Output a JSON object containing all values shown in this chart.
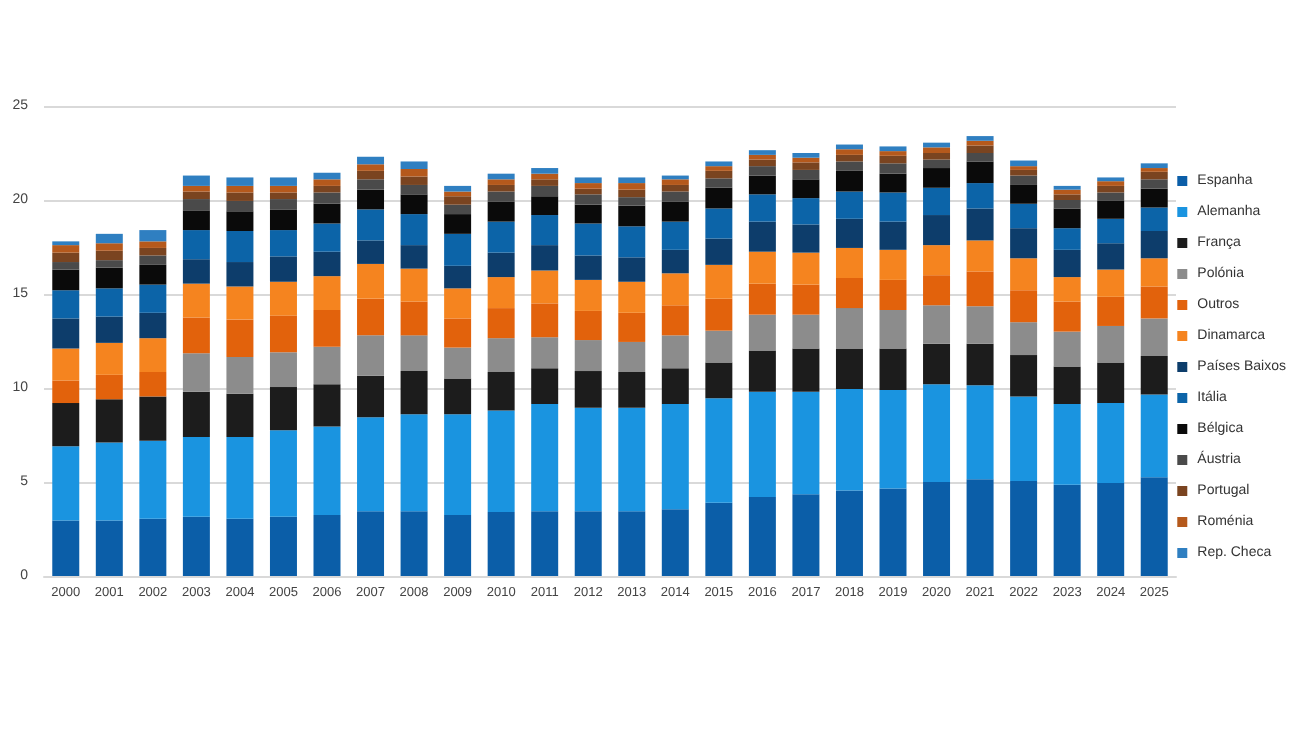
{
  "chart_data": {
    "type": "bar",
    "stacked": true,
    "categories": [
      "2000",
      "2001",
      "2002",
      "2003",
      "2004",
      "2005",
      "2006",
      "2007",
      "2008",
      "2009",
      "2010",
      "2011",
      "2012",
      "2013",
      "2014",
      "2015",
      "2016",
      "2017",
      "2018",
      "2019",
      "2020",
      "2021",
      "2022",
      "2023",
      "2024",
      "2025"
    ],
    "ylim": [
      0,
      25
    ],
    "yticks": [
      0,
      5,
      10,
      15,
      20,
      25
    ],
    "grid": "y",
    "legend": "right",
    "series": [
      {
        "name": "Espanha",
        "color": "#0b5ea8",
        "values": [
          2.95,
          2.95,
          3.05,
          3.15,
          3.05,
          3.15,
          3.25,
          3.45,
          3.45,
          3.25,
          3.4,
          3.45,
          3.45,
          3.45,
          3.55,
          3.9,
          4.2,
          4.35,
          4.55,
          4.65,
          5.0,
          5.15,
          5.05,
          4.85,
          4.95,
          5.25
        ]
      },
      {
        "name": "Alemanha",
        "color": "#1a94e0",
        "values": [
          3.95,
          4.15,
          4.15,
          4.25,
          4.35,
          4.6,
          4.7,
          5.0,
          5.15,
          5.35,
          5.4,
          5.7,
          5.5,
          5.5,
          5.6,
          5.55,
          5.6,
          5.45,
          5.4,
          5.25,
          5.2,
          5.0,
          4.5,
          4.3,
          4.25,
          4.4
        ]
      },
      {
        "name": "França",
        "color": "#1c1c1c",
        "values": [
          2.3,
          2.3,
          2.35,
          2.4,
          2.3,
          2.3,
          2.25,
          2.2,
          2.3,
          1.9,
          2.05,
          1.9,
          1.95,
          1.9,
          1.9,
          1.9,
          2.2,
          2.3,
          2.15,
          2.2,
          2.15,
          2.2,
          2.2,
          2.0,
          2.15,
          2.05
        ]
      },
      {
        "name": "Polónia",
        "color": "#8c8c8c",
        "values": [
          0,
          0,
          0,
          2.05,
          1.95,
          1.85,
          2.0,
          2.15,
          1.9,
          1.65,
          1.8,
          1.65,
          1.65,
          1.6,
          1.75,
          1.7,
          1.9,
          1.8,
          2.15,
          2.05,
          2.05,
          2.0,
          1.75,
          1.85,
          1.95,
          2.0
        ]
      },
      {
        "name": "Outros",
        "color": "#e2620c",
        "values": [
          1.2,
          1.3,
          1.3,
          1.9,
          2.0,
          1.95,
          1.95,
          1.95,
          1.8,
          1.55,
          1.6,
          1.8,
          1.55,
          1.55,
          1.6,
          1.7,
          1.65,
          1.6,
          1.6,
          1.6,
          1.6,
          1.85,
          1.7,
          1.6,
          1.55,
          1.7
        ]
      },
      {
        "name": "Dinamarca",
        "color": "#f5841f",
        "values": [
          1.7,
          1.7,
          1.8,
          1.8,
          1.75,
          1.8,
          1.8,
          1.85,
          1.75,
          1.6,
          1.65,
          1.75,
          1.65,
          1.65,
          1.7,
          1.8,
          1.7,
          1.7,
          1.6,
          1.6,
          1.6,
          1.65,
          1.7,
          1.3,
          1.45,
          1.5
        ]
      },
      {
        "name": "Países Baixos",
        "color": "#0d3d6b",
        "values": [
          1.6,
          1.4,
          1.35,
          1.3,
          1.3,
          1.35,
          1.3,
          1.25,
          1.25,
          1.2,
          1.3,
          1.35,
          1.3,
          1.3,
          1.25,
          1.4,
          1.6,
          1.5,
          1.55,
          1.5,
          1.6,
          1.7,
          1.6,
          1.45,
          1.4,
          1.45
        ]
      },
      {
        "name": "Itália",
        "color": "#0c64a8",
        "values": [
          1.5,
          1.5,
          1.5,
          1.55,
          1.65,
          1.4,
          1.5,
          1.65,
          1.65,
          1.7,
          1.65,
          1.6,
          1.7,
          1.65,
          1.5,
          1.6,
          1.45,
          1.4,
          1.45,
          1.55,
          1.45,
          1.35,
          1.3,
          1.15,
          1.3,
          1.25
        ]
      },
      {
        "name": "Bélgica",
        "color": "#0a0a0a",
        "values": [
          1.1,
          1.1,
          1.05,
          1.05,
          1.05,
          1.1,
          1.05,
          1.05,
          1.05,
          1.05,
          1.05,
          1.0,
          1.0,
          1.1,
          1.05,
          1.1,
          1.0,
          1.0,
          1.1,
          1.0,
          1.05,
          1.15,
          1.0,
          1.05,
          0.95,
          1.0
        ]
      },
      {
        "name": "Áustria",
        "color": "#4a4a4a",
        "values": [
          0.4,
          0.4,
          0.5,
          0.6,
          0.55,
          0.55,
          0.6,
          0.55,
          0.5,
          0.5,
          0.55,
          0.55,
          0.55,
          0.45,
          0.55,
          0.5,
          0.5,
          0.5,
          0.5,
          0.55,
          0.45,
          0.45,
          0.5,
          0.45,
          0.45,
          0.5
        ]
      },
      {
        "name": "Portugal",
        "color": "#7a4420",
        "values": [
          0.5,
          0.5,
          0.4,
          0.4,
          0.45,
          0.35,
          0.35,
          0.45,
          0.45,
          0.45,
          0.35,
          0.35,
          0.3,
          0.4,
          0.35,
          0.4,
          0.35,
          0.4,
          0.35,
          0.4,
          0.35,
          0.4,
          0.3,
          0.3,
          0.35,
          0.4
        ]
      },
      {
        "name": "Roménia",
        "color": "#b5591c",
        "values": [
          0.4,
          0.4,
          0.35,
          0.3,
          0.35,
          0.35,
          0.35,
          0.35,
          0.4,
          0.25,
          0.3,
          0.3,
          0.3,
          0.35,
          0.3,
          0.25,
          0.25,
          0.25,
          0.3,
          0.25,
          0.3,
          0.25,
          0.2,
          0.25,
          0.25,
          0.2
        ]
      },
      {
        "name": "Rep. Checa",
        "color": "#2f7fc1",
        "values": [
          0.2,
          0.5,
          0.6,
          0.55,
          0.45,
          0.45,
          0.35,
          0.4,
          0.4,
          0.3,
          0.3,
          0.3,
          0.3,
          0.3,
          0.2,
          0.25,
          0.25,
          0.25,
          0.25,
          0.25,
          0.25,
          0.25,
          0.3,
          0.2,
          0.2,
          0.25
        ]
      }
    ]
  }
}
